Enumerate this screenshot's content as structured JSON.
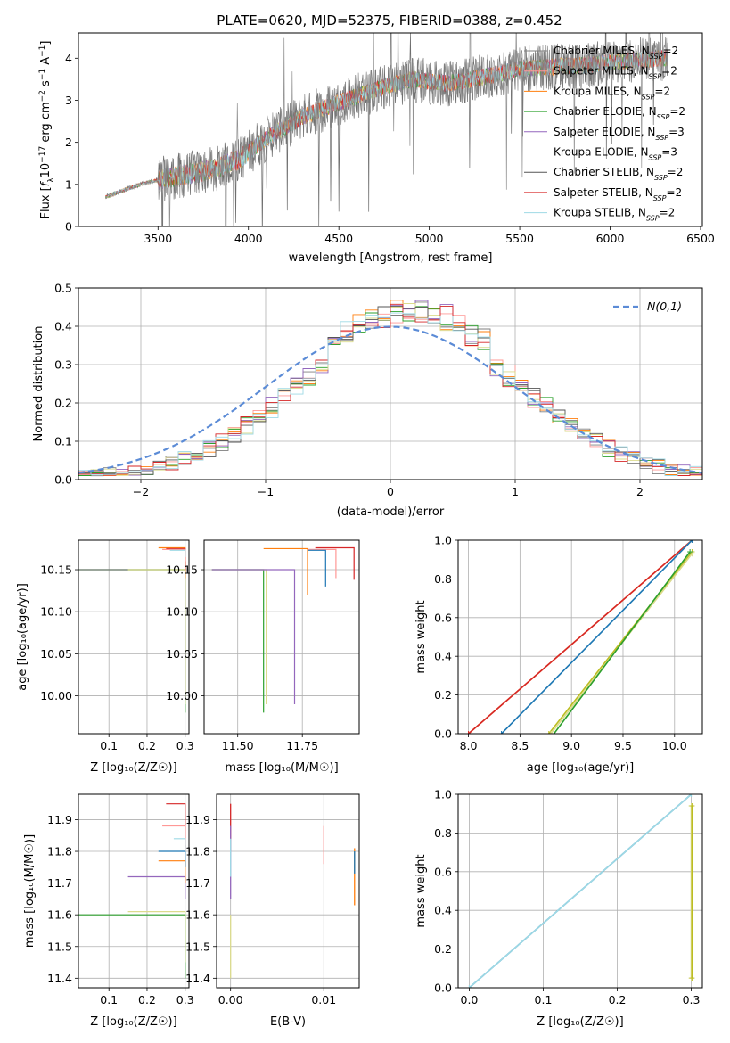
{
  "figure": {
    "title": "PLATE=0620, MJD=52375, FIBERID=0388, z=0.452"
  },
  "series_names": [
    "Chabrier MILES, N_SSP=2",
    "Salpeter MILES, N_SSP=2",
    "Kroupa MILES, N_SSP=2",
    "Chabrier ELODIE, N_SSP=2",
    "Salpeter ELODIE, N_SSP=3",
    "Kroupa ELODIE, N_SSP=3",
    "Chabrier STELIB, N_SSP=2",
    "Salpeter STELIB, N_SSP=2",
    "Kroupa STELIB, N_SSP=2"
  ],
  "colors": [
    "#7f7f7f",
    "#ff9896",
    "#ff7f0e",
    "#2ca02c",
    "#9467bd",
    "#dbdb8d",
    "#555555",
    "#d62728",
    "#9edae5"
  ],
  "chart_data": [
    {
      "id": "spectrum",
      "type": "line",
      "xlabel": "wavelength [Angstrom, rest frame]",
      "ylabel": "Flux [f_λ 10^-17 erg cm^-2 s^-1 A^-1]",
      "xlim": [
        3060,
        6510
      ],
      "ylim": [
        0,
        4.6
      ],
      "xticks": [
        3500,
        4000,
        4500,
        5000,
        5500,
        6000,
        6500
      ],
      "yticks": [
        0,
        1,
        2,
        3,
        4
      ],
      "legend": "top-right",
      "grid": false,
      "x_range_data": [
        3210,
        6320
      ],
      "continuum_nodes": [
        [
          3210,
          0.7
        ],
        [
          3400,
          1.0
        ],
        [
          3600,
          1.2
        ],
        [
          3800,
          1.35
        ],
        [
          3950,
          1.6
        ],
        [
          4100,
          2.1
        ],
        [
          4300,
          2.6
        ],
        [
          4500,
          2.95
        ],
        [
          4700,
          3.25
        ],
        [
          4900,
          3.5
        ],
        [
          5000,
          3.45
        ],
        [
          5100,
          3.4
        ],
        [
          5300,
          3.55
        ],
        [
          5500,
          3.75
        ],
        [
          5700,
          3.8
        ],
        [
          5900,
          3.85
        ],
        [
          6100,
          3.95
        ],
        [
          6320,
          4.0
        ]
      ]
    },
    {
      "id": "residuals",
      "type": "line",
      "xlabel": "(data-model)/error",
      "ylabel": "Normed distribution",
      "xlim": [
        -2.5,
        2.5
      ],
      "ylim": [
        0,
        0.5
      ],
      "xticks": [
        -2,
        -1,
        0,
        1,
        2
      ],
      "yticks": [
        0.0,
        0.1,
        0.2,
        0.3,
        0.4,
        0.5
      ],
      "legend": "top-right",
      "legend_label": "N(0,1)",
      "reference_curve": "normal_mean_0_sd_1",
      "grid": true,
      "bin_width": 0.1
    },
    {
      "id": "age_vs_Z",
      "type": "line",
      "xlabel": "Z [log10(Z/Z_sun)]",
      "ylabel": "age [log10(age/yr)]",
      "xlim": [
        0.02,
        0.31
      ],
      "ylim": [
        9.955,
        10.185
      ],
      "xticks": [
        0.1,
        0.2,
        0.3
      ],
      "yticks": [
        10.0,
        10.05,
        10.1,
        10.15
      ],
      "grid": true,
      "steps": [
        {
          "x0": 0.02,
          "x1": 0.3,
          "y0": 10.15,
          "y1": 9.98,
          "color": "#2ca02c"
        },
        {
          "x0": 0.02,
          "x1": 0.3,
          "y0": 10.15,
          "y1": 10.0,
          "color": "#7f7f7f"
        },
        {
          "x0": 0.15,
          "x1": 0.3,
          "y0": 10.15,
          "y1": 9.99,
          "color": "#dbdb8d"
        },
        {
          "x0": 0.23,
          "x1": 0.3,
          "y0": 10.176,
          "y1": 10.14,
          "color": "#ff7f0e"
        },
        {
          "x0": 0.25,
          "x1": 0.3,
          "y0": 10.175,
          "y1": 10.15,
          "color": "#d62728"
        },
        {
          "x0": 0.24,
          "x1": 0.3,
          "y0": 10.174,
          "y1": 10.16,
          "color": "#ff9896"
        },
        {
          "x0": 0.26,
          "x1": 0.3,
          "y0": 10.173,
          "y1": 10.165,
          "color": "#9edae5"
        }
      ]
    },
    {
      "id": "age_vs_mass",
      "type": "line",
      "xlabel": "mass [log10(M/M_sun)]",
      "ylabel": "",
      "xlim": [
        11.37,
        11.97
      ],
      "ylim": [
        9.955,
        10.185
      ],
      "xticks": [
        11.5,
        11.75
      ],
      "xtick_labels": [
        "11.50",
        "11.75"
      ],
      "yticks": [
        10.0,
        10.05,
        10.1,
        10.15
      ],
      "grid": true,
      "steps": [
        {
          "x0": 11.4,
          "x1": 11.6,
          "y0": 10.15,
          "y1": 9.98,
          "color": "#2ca02c"
        },
        {
          "x0": 11.4,
          "x1": 11.61,
          "y0": 10.15,
          "y1": 9.99,
          "color": "#dbdb8d"
        },
        {
          "x0": 11.4,
          "x1": 11.72,
          "y0": 10.15,
          "y1": 9.99,
          "color": "#9467bd"
        },
        {
          "x0": 11.6,
          "x1": 11.77,
          "y0": 10.175,
          "y1": 10.12,
          "color": "#ff7f0e"
        },
        {
          "x0": 11.8,
          "x1": 11.95,
          "y0": 10.176,
          "y1": 10.138,
          "color": "#d62728"
        },
        {
          "x0": 11.77,
          "x1": 11.88,
          "y0": 10.174,
          "y1": 10.14,
          "color": "#ff9896"
        },
        {
          "x0": 11.77,
          "x1": 11.84,
          "y0": 10.173,
          "y1": 10.13,
          "color": "#1f77b4"
        }
      ]
    },
    {
      "id": "massweight_vs_age",
      "type": "line",
      "xlabel": "age [log10(age/yr)]",
      "ylabel": "mass weight",
      "xlim": [
        7.9,
        10.27
      ],
      "ylim": [
        0,
        1.0
      ],
      "xticks": [
        8.0,
        8.5,
        9.0,
        9.5,
        10.0
      ],
      "yticks": [
        0.0,
        0.2,
        0.4,
        0.6,
        0.8,
        1.0
      ],
      "grid": true,
      "lines": [
        {
          "x0": 8.0,
          "x1": 10.17,
          "y1": 1.0,
          "color": "#ff7f0e"
        },
        {
          "x0": 8.0,
          "x1": 10.17,
          "y1": 1.0,
          "color": "#d62728"
        },
        {
          "x0": 8.32,
          "x1": 10.17,
          "y1": 1.0,
          "color": "#9edae5"
        },
        {
          "x0": 8.32,
          "x1": 10.17,
          "y1": 1.0,
          "color": "#1f77b4"
        },
        {
          "x0": 8.78,
          "x1": 10.17,
          "y1": 0.94,
          "color": "#bcbd22"
        },
        {
          "x0": 8.8,
          "x1": 10.17,
          "y1": 0.93,
          "color": "#dbdb8d"
        },
        {
          "x0": 8.83,
          "x1": 10.15,
          "y1": 0.94,
          "color": "#2ca02c"
        }
      ]
    },
    {
      "id": "mass_vs_Z",
      "type": "line",
      "xlabel": "Z [log10(Z/Z_sun)]",
      "ylabel": "mass [log10(M/M_sun)]",
      "xlim": [
        0.02,
        0.31
      ],
      "ylim": [
        11.37,
        11.98
      ],
      "xticks": [
        0.1,
        0.2,
        0.3
      ],
      "yticks": [
        11.4,
        11.5,
        11.6,
        11.7,
        11.8,
        11.9
      ],
      "grid": true,
      "steps": [
        {
          "x0": 0.02,
          "x1": 0.3,
          "y0": 11.6,
          "y1": 11.4,
          "color": "#2ca02c"
        },
        {
          "x0": 0.15,
          "x1": 0.3,
          "y0": 11.61,
          "y1": 11.45,
          "color": "#dbdb8d"
        },
        {
          "x0": 0.15,
          "x1": 0.3,
          "y0": 11.72,
          "y1": 11.65,
          "color": "#9467bd"
        },
        {
          "x0": 0.23,
          "x1": 0.3,
          "y0": 11.77,
          "y1": 11.7,
          "color": "#ff7f0e"
        },
        {
          "x0": 0.23,
          "x1": 0.3,
          "y0": 11.8,
          "y1": 11.75,
          "color": "#1f77b4"
        },
        {
          "x0": 0.25,
          "x1": 0.3,
          "y0": 11.95,
          "y1": 11.8,
          "color": "#d62728"
        },
        {
          "x0": 0.24,
          "x1": 0.3,
          "y0": 11.88,
          "y1": 11.82,
          "color": "#ff9896"
        },
        {
          "x0": 0.27,
          "x1": 0.3,
          "y0": 11.84,
          "y1": 11.8,
          "color": "#9edae5"
        }
      ]
    },
    {
      "id": "mass_vs_EBV",
      "type": "line",
      "xlabel": "E(B-V)",
      "ylabel": "",
      "xlim": [
        -0.0015,
        0.0138
      ],
      "ylim": [
        11.37,
        11.98
      ],
      "xticks": [
        0.0,
        0.01
      ],
      "xtick_labels": [
        "0.00",
        "0.01"
      ],
      "yticks": [
        11.4,
        11.5,
        11.6,
        11.7,
        11.8,
        11.9
      ],
      "grid": true,
      "segments": [
        {
          "x": 0.0,
          "y0": 11.8,
          "y1": 11.95,
          "color": "#d62728"
        },
        {
          "x": 0.0,
          "y0": 11.65,
          "y1": 11.88,
          "color": "#9467bd"
        },
        {
          "x": 0.0,
          "y0": 11.4,
          "y1": 11.6,
          "color": "#dbdb8d"
        },
        {
          "x": 0.0,
          "y0": 11.72,
          "y1": 11.84,
          "color": "#9edae5"
        },
        {
          "x": 0.01,
          "y0": 11.76,
          "y1": 11.88,
          "color": "#ff9896"
        },
        {
          "x": 0.0133,
          "y0": 11.63,
          "y1": 11.81,
          "color": "#ff7f0e"
        },
        {
          "x": 0.0133,
          "y0": 11.73,
          "y1": 11.8,
          "color": "#1f77b4"
        }
      ]
    },
    {
      "id": "massweight_vs_Z",
      "type": "line",
      "xlabel": "Z [log10(Z/Z_sun)]",
      "ylabel": "mass weight",
      "xlim": [
        -0.015,
        0.315
      ],
      "ylim": [
        0,
        1.0
      ],
      "xticks": [
        0.0,
        0.1,
        0.2,
        0.3
      ],
      "yticks": [
        0.0,
        0.2,
        0.4,
        0.6,
        0.8,
        1.0
      ],
      "grid": true,
      "lines": [
        {
          "x0": 0.0,
          "x1": 0.3,
          "y0": 0.0,
          "y1": 1.0,
          "color": "#1f77b4"
        },
        {
          "x0": 0.0,
          "x1": 0.3,
          "y0": 0.0,
          "y1": 1.0,
          "color": "#9edae5"
        },
        {
          "x0": 0.3,
          "x1": 0.3,
          "y0": 0.05,
          "y1": 0.94,
          "color": "#dbdb8d"
        },
        {
          "x0": 0.301,
          "x1": 0.301,
          "y0": 0.05,
          "y1": 0.94,
          "color": "#bcbd22"
        }
      ]
    }
  ]
}
